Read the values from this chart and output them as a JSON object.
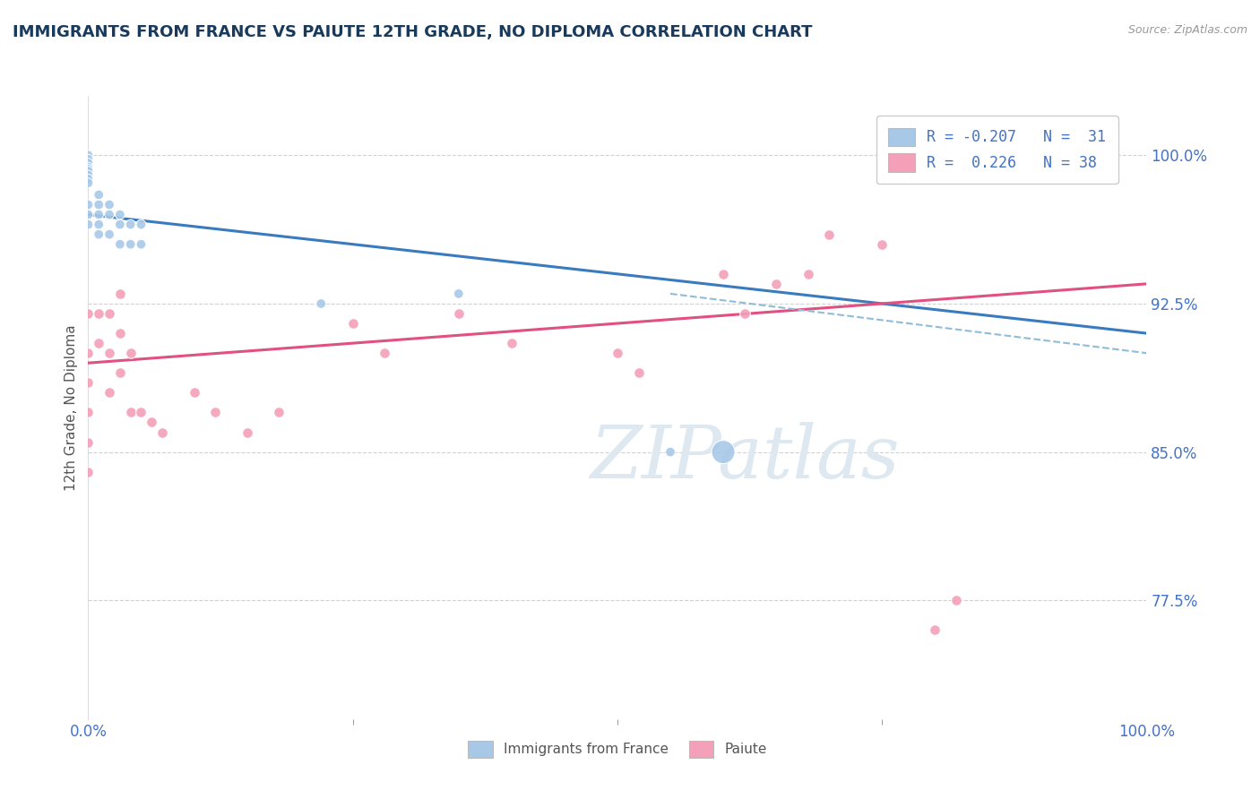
{
  "title": "IMMIGRANTS FROM FRANCE VS PAIUTE 12TH GRADE, NO DIPLOMA CORRELATION CHART",
  "source_text": "Source: ZipAtlas.com",
  "ylabel": "12th Grade, No Diploma",
  "x_tick_labels_left": "0.0%",
  "x_tick_labels_right": "100.0%",
  "y_ticks": [
    0.775,
    0.85,
    0.925,
    1.0
  ],
  "x_lim": [
    0.0,
    1.0
  ],
  "y_lim": [
    0.715,
    1.03
  ],
  "blue_color": "#a8c8e8",
  "pink_color": "#f4a0b8",
  "blue_line_color": "#3a7abf",
  "pink_line_color": "#e05080",
  "dashed_line_color": "#90bcd8",
  "title_color": "#1a3a5c",
  "axis_label_color": "#4472c4",
  "grid_color": "#cccccc",
  "watermark_color": "#dde8f0",
  "blue_scatter_x": [
    0.0,
    0.0,
    0.0,
    0.0,
    0.0,
    0.0,
    0.0,
    0.0,
    0.0,
    0.0,
    0.0,
    0.0,
    0.01,
    0.01,
    0.01,
    0.01,
    0.01,
    0.02,
    0.02,
    0.02,
    0.03,
    0.03,
    0.03,
    0.04,
    0.04,
    0.05,
    0.05,
    0.22,
    0.35,
    0.55,
    0.6
  ],
  "blue_scatter_y": [
    1.0,
    0.998,
    0.996,
    0.994,
    0.993,
    0.992,
    0.99,
    0.988,
    0.986,
    0.975,
    0.97,
    0.965,
    0.98,
    0.975,
    0.97,
    0.965,
    0.96,
    0.975,
    0.97,
    0.96,
    0.97,
    0.965,
    0.955,
    0.965,
    0.955,
    0.965,
    0.955,
    0.925,
    0.93,
    0.85,
    0.85
  ],
  "blue_scatter_sizes": [
    60,
    60,
    60,
    60,
    60,
    60,
    60,
    60,
    60,
    60,
    60,
    60,
    60,
    60,
    60,
    60,
    60,
    60,
    60,
    60,
    60,
    60,
    60,
    60,
    60,
    60,
    60,
    60,
    60,
    60,
    350
  ],
  "pink_scatter_x": [
    0.0,
    0.0,
    0.0,
    0.0,
    0.0,
    0.0,
    0.01,
    0.01,
    0.02,
    0.02,
    0.02,
    0.03,
    0.03,
    0.03,
    0.04,
    0.04,
    0.05,
    0.06,
    0.07,
    0.1,
    0.12,
    0.15,
    0.18,
    0.25,
    0.28,
    0.35,
    0.4,
    0.5,
    0.52,
    0.6,
    0.62,
    0.65,
    0.68,
    0.7,
    0.75,
    0.8,
    0.82
  ],
  "pink_scatter_y": [
    0.92,
    0.9,
    0.885,
    0.87,
    0.855,
    0.84,
    0.92,
    0.905,
    0.92,
    0.9,
    0.88,
    0.93,
    0.91,
    0.89,
    0.9,
    0.87,
    0.87,
    0.865,
    0.86,
    0.88,
    0.87,
    0.86,
    0.87,
    0.915,
    0.9,
    0.92,
    0.905,
    0.9,
    0.89,
    0.94,
    0.92,
    0.935,
    0.94,
    0.96,
    0.955,
    0.76,
    0.775
  ],
  "blue_trend_x": [
    0.0,
    1.0
  ],
  "blue_trend_y": [
    0.97,
    0.91
  ],
  "pink_trend_x": [
    0.0,
    1.0
  ],
  "pink_trend_y": [
    0.895,
    0.935
  ],
  "dashed_trend_x": [
    0.55,
    1.0
  ],
  "dashed_trend_y": [
    0.93,
    0.9
  ],
  "background_color": "#ffffff"
}
